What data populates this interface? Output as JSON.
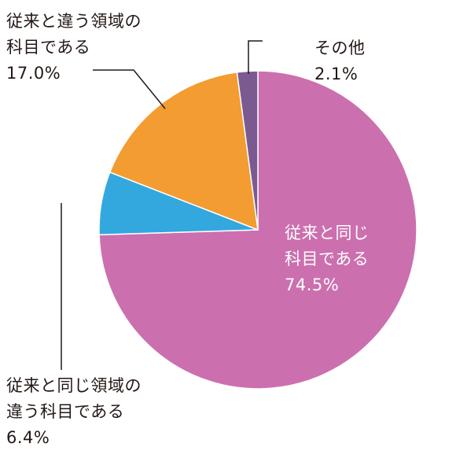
{
  "chart_data": {
    "type": "pie",
    "start_angle_deg": 0,
    "direction": "clockwise",
    "slices": [
      {
        "label_lines": [
          "従来と同じ",
          "科目である"
        ],
        "value": 74.5,
        "value_text": "74.5%",
        "color": "#cc6faf",
        "label_color": "#ffffff"
      },
      {
        "label_lines": [
          "従来と同じ領域の",
          "違う科目である"
        ],
        "value": 6.4,
        "value_text": "6.4%",
        "color": "#33a8df",
        "label_color": "#231815"
      },
      {
        "label_lines": [
          "従来と違う領域の",
          "科目である"
        ],
        "value": 17.0,
        "value_text": "17.0%",
        "color": "#f29c32",
        "label_color": "#231815"
      },
      {
        "label_lines": [
          "その他"
        ],
        "value": 2.1,
        "value_text": "2.1%",
        "color": "#7b5a92",
        "label_color": "#231815"
      }
    ],
    "slice_border_color": "#ffffff",
    "leader_line_color": "#231815"
  }
}
